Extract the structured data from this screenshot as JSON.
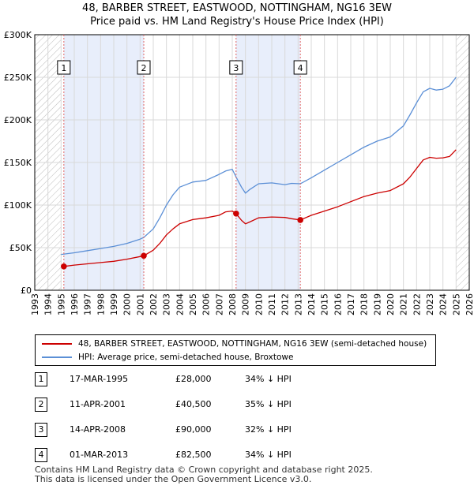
{
  "title": {
    "line1": "48, BARBER STREET, EASTWOOD, NOTTINGHAM, NG16 3EW",
    "line2": "Price paid vs. HM Land Registry's House Price Index (HPI)"
  },
  "colors": {
    "price_line": "#cc0000",
    "hpi_line": "#5b8fd6",
    "shade": "#e8eefb",
    "event_line": "#e06666"
  },
  "chart_data": {
    "type": "line",
    "xlabel": "",
    "ylabel": "",
    "xlim": [
      1993,
      2026
    ],
    "ylim": [
      0,
      300000
    ],
    "y_ticks": [
      {
        "value": 0,
        "label": "£0"
      },
      {
        "value": 50000,
        "label": "£50K"
      },
      {
        "value": 100000,
        "label": "£100K"
      },
      {
        "value": 150000,
        "label": "£150K"
      },
      {
        "value": 200000,
        "label": "£200K"
      },
      {
        "value": 250000,
        "label": "£250K"
      },
      {
        "value": 300000,
        "label": "£300K"
      }
    ],
    "x_ticks": [
      "1993",
      "1994",
      "1995",
      "1996",
      "1997",
      "1998",
      "1999",
      "2000",
      "2001",
      "2002",
      "2003",
      "2004",
      "2005",
      "2006",
      "2007",
      "2008",
      "2009",
      "2010",
      "2011",
      "2012",
      "2013",
      "2014",
      "2015",
      "2016",
      "2017",
      "2018",
      "2019",
      "2020",
      "2021",
      "2022",
      "2023",
      "2024",
      "2025",
      "2026"
    ],
    "hatched_ranges": [
      [
        1993,
        1995.0
      ],
      [
        2025.0,
        2026
      ]
    ],
    "shaded_ranges": [
      [
        1995.21,
        2001.28
      ],
      [
        2008.29,
        2013.17
      ]
    ],
    "series": [
      {
        "name": "48, BARBER STREET, EASTWOOD, NOTTINGHAM, NG16 3EW (semi-detached house)",
        "color": "#cc0000",
        "x": [
          1995.21,
          1996,
          1997,
          1998,
          1999,
          2000,
          2001,
          2001.28,
          2002,
          2002.5,
          2003,
          2003.5,
          2004,
          2005,
          2006,
          2007,
          2007.5,
          2008.0,
          2008.29,
          2008.7,
          2009,
          2009.3,
          2010,
          2011,
          2012,
          2012.5,
          2013.17,
          2014,
          2015,
          2016,
          2017,
          2018,
          2019,
          2020,
          2021,
          2021.5,
          2022,
          2022.5,
          2023,
          2023.5,
          2024,
          2024.5,
          2025
        ],
        "values": [
          28000,
          29500,
          31000,
          32500,
          34000,
          36500,
          39500,
          40500,
          47000,
          55000,
          65000,
          72000,
          78000,
          83000,
          85000,
          88000,
          92000,
          93000,
          90000,
          82000,
          78000,
          80000,
          85000,
          86000,
          85500,
          84000,
          82500,
          88000,
          93000,
          98000,
          104000,
          110000,
          114000,
          117000,
          125000,
          133000,
          143000,
          153000,
          156000,
          155000,
          155500,
          157000,
          165000
        ]
      },
      {
        "name": "HPI: Average price, semi-detached house, Broxtowe",
        "color": "#5b8fd6",
        "x": [
          1995.0,
          1996,
          1997,
          1998,
          1999,
          2000,
          2001,
          2001.28,
          2002,
          2002.5,
          2003,
          2003.5,
          2004,
          2005,
          2006,
          2007,
          2007.5,
          2008.0,
          2008.29,
          2008.7,
          2009,
          2009.3,
          2010,
          2011,
          2012,
          2012.5,
          2013.17,
          2014,
          2015,
          2016,
          2017,
          2018,
          2019,
          2020,
          2021,
          2021.5,
          2022,
          2022.5,
          2023,
          2023.5,
          2024,
          2024.5,
          2025
        ],
        "values": [
          42000,
          44000,
          46500,
          49000,
          51500,
          55000,
          60000,
          62000,
          72000,
          85000,
          100000,
          112000,
          121000,
          127000,
          129000,
          136000,
          140000,
          142000,
          133000,
          121000,
          114000,
          118000,
          125000,
          126000,
          124000,
          125500,
          125000,
          132000,
          141000,
          150000,
          159000,
          168000,
          175000,
          180000,
          193000,
          206000,
          220000,
          233000,
          237000,
          235000,
          236000,
          240000,
          250000
        ]
      }
    ],
    "events": [
      {
        "label": "1",
        "x": 1995.21,
        "value": 28000
      },
      {
        "label": "2",
        "x": 2001.28,
        "value": 40500
      },
      {
        "label": "3",
        "x": 2008.29,
        "value": 90000
      },
      {
        "label": "4",
        "x": 2013.17,
        "value": 82500
      }
    ]
  },
  "legend": {
    "price_label": "48, BARBER STREET, EASTWOOD, NOTTINGHAM, NG16 3EW (semi-detached house)",
    "hpi_label": "HPI: Average price, semi-detached house, Broxtowe"
  },
  "sales": [
    {
      "num": "1",
      "date": "17-MAR-1995",
      "price": "£28,000",
      "pct": "34% ↓ HPI"
    },
    {
      "num": "2",
      "date": "11-APR-2001",
      "price": "£40,500",
      "pct": "35% ↓ HPI"
    },
    {
      "num": "3",
      "date": "14-APR-2008",
      "price": "£90,000",
      "pct": "32% ↓ HPI"
    },
    {
      "num": "4",
      "date": "01-MAR-2013",
      "price": "£82,500",
      "pct": "34% ↓ HPI"
    }
  ],
  "footer": {
    "line1": "Contains HM Land Registry data © Crown copyright and database right 2025.",
    "line2": "This data is licensed under the Open Government Licence v3.0."
  }
}
